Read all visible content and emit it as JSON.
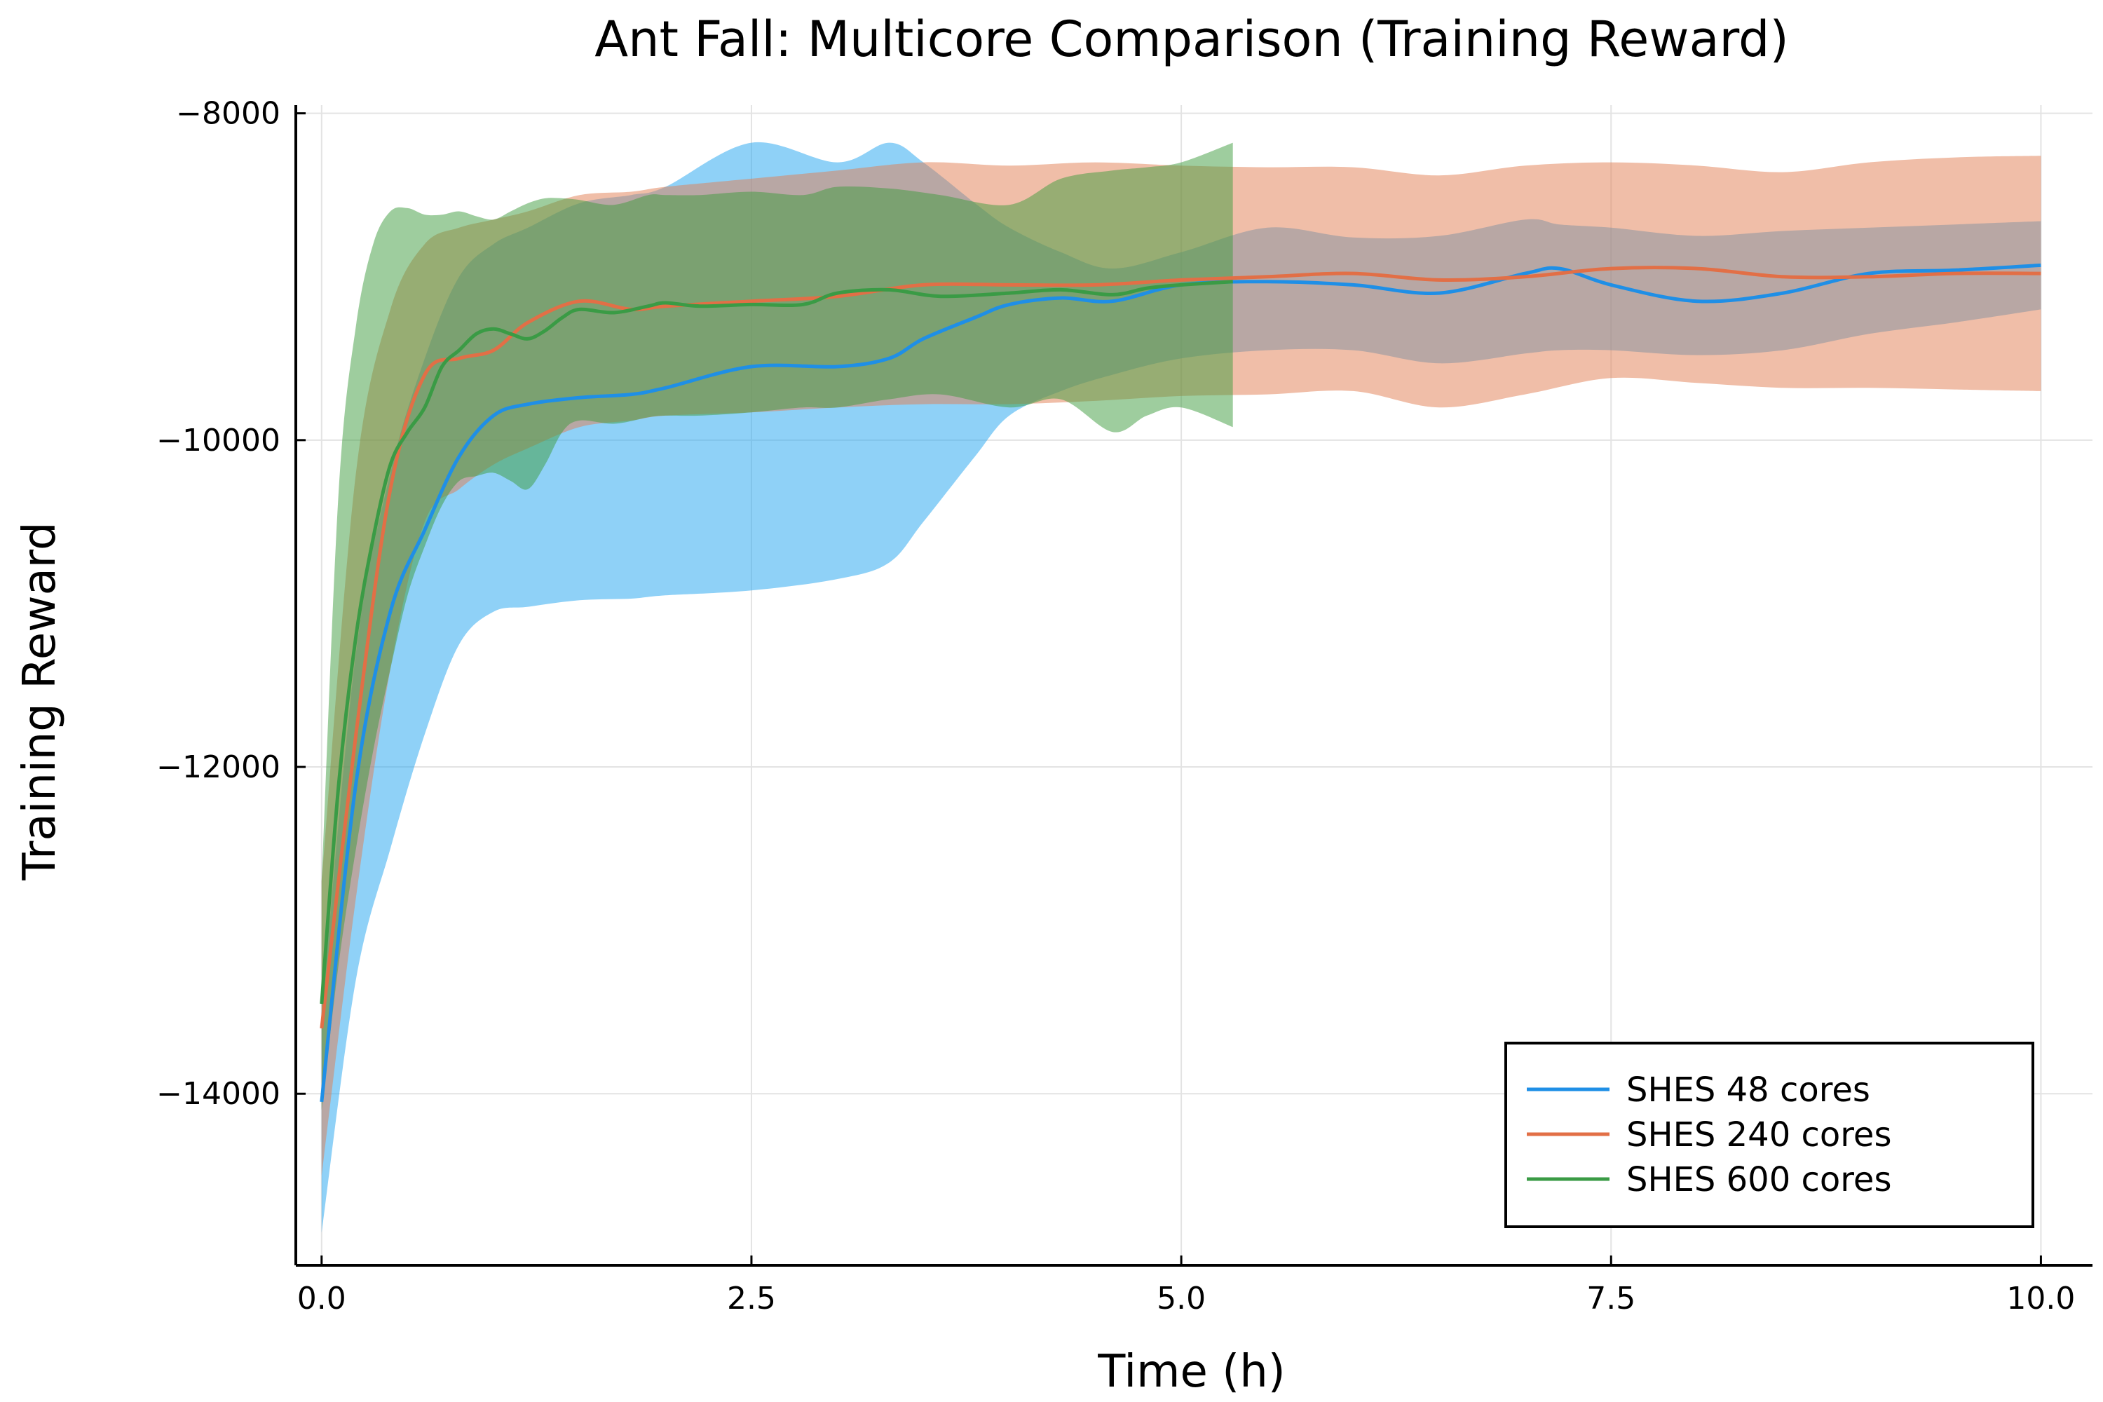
{
  "chart_data": {
    "type": "line",
    "title": "Ant Fall: Multicore Comparison (Training Reward)",
    "xlabel": "Time (h)",
    "ylabel": "Training Reward",
    "xlim": [
      -0.15,
      10.3
    ],
    "ylim": [
      -15050,
      -7950
    ],
    "xticks": [
      0,
      2.5,
      5,
      7.5,
      10
    ],
    "xtick_labels": [
      "0.0",
      "2.5",
      "5.0",
      "7.5",
      "10.0"
    ],
    "yticks": [
      -14000,
      -12000,
      -10000,
      -8000
    ],
    "ytick_labels": [
      "−14000",
      "−12000",
      "−10000",
      "−8000"
    ],
    "grid": true,
    "legend_position": "bottom-right",
    "band_opacity": 0.5,
    "series": [
      {
        "name": "SHES 48 cores",
        "color": "#1f8fe6",
        "band_color": "#1fa3f0",
        "x": [
          0,
          0.2,
          0.4,
          0.6,
          0.8,
          1.0,
          1.2,
          1.5,
          1.8,
          2.0,
          2.5,
          3.0,
          3.3,
          3.5,
          3.8,
          4.0,
          4.3,
          4.6,
          5.0,
          5.5,
          6.0,
          6.5,
          7.0,
          7.2,
          7.5,
          8.0,
          8.5,
          9.0,
          9.5,
          10.0
        ],
        "mean": [
          -14050,
          -12100,
          -11050,
          -10550,
          -10100,
          -9850,
          -9780,
          -9740,
          -9720,
          -9680,
          -9550,
          -9550,
          -9500,
          -9380,
          -9250,
          -9170,
          -9130,
          -9150,
          -9050,
          -9030,
          -9050,
          -9100,
          -8980,
          -8950,
          -9050,
          -9150,
          -9100,
          -8980,
          -8960,
          -8930
        ],
        "upper": [
          -13500,
          -11300,
          -10200,
          -9500,
          -9000,
          -8800,
          -8700,
          -8550,
          -8500,
          -8450,
          -8180,
          -8300,
          -8180,
          -8300,
          -8550,
          -8700,
          -8850,
          -8950,
          -8850,
          -8700,
          -8760,
          -8750,
          -8650,
          -8680,
          -8700,
          -8750,
          -8720,
          -8700,
          -8680,
          -8660
        ],
        "lower": [
          -14850,
          -13300,
          -12500,
          -11800,
          -11250,
          -11050,
          -11020,
          -10980,
          -10970,
          -10950,
          -10920,
          -10850,
          -10750,
          -10500,
          -10100,
          -9850,
          -9700,
          -9600,
          -9500,
          -9450,
          -9450,
          -9530,
          -9470,
          -9450,
          -9450,
          -9480,
          -9450,
          -9350,
          -9280,
          -9200
        ]
      },
      {
        "name": "SHES 240 cores",
        "color": "#e26f46",
        "band_color": "#e27d52",
        "x": [
          0,
          0.2,
          0.4,
          0.6,
          0.8,
          1.0,
          1.2,
          1.5,
          1.8,
          2.0,
          2.5,
          3.0,
          3.5,
          4.0,
          4.5,
          5.0,
          5.5,
          6.0,
          6.5,
          7.0,
          7.5,
          8.0,
          8.5,
          9.0,
          9.5,
          10.0
        ],
        "mean": [
          -13600,
          -11800,
          -10300,
          -9600,
          -9500,
          -9450,
          -9280,
          -9150,
          -9200,
          -9180,
          -9150,
          -9120,
          -9050,
          -9050,
          -9050,
          -9020,
          -9000,
          -8980,
          -9020,
          -9000,
          -8950,
          -8950,
          -9000,
          -9000,
          -8980,
          -8980
        ],
        "upper": [
          -12700,
          -10200,
          -9200,
          -8800,
          -8700,
          -8650,
          -8600,
          -8500,
          -8480,
          -8450,
          -8400,
          -8350,
          -8300,
          -8320,
          -8300,
          -8320,
          -8330,
          -8330,
          -8380,
          -8320,
          -8300,
          -8320,
          -8360,
          -8300,
          -8270,
          -8260
        ],
        "lower": [
          -14500,
          -12800,
          -11400,
          -10500,
          -10300,
          -10150,
          -10050,
          -9920,
          -9880,
          -9850,
          -9830,
          -9800,
          -9780,
          -9780,
          -9760,
          -9730,
          -9720,
          -9700,
          -9800,
          -9720,
          -9620,
          -9650,
          -9680,
          -9680,
          -9690,
          -9700
        ]
      },
      {
        "name": "SHES 600 cores",
        "color": "#3a9b45",
        "band_color": "#3d9b3d",
        "x": [
          0,
          0.1,
          0.2,
          0.3,
          0.4,
          0.5,
          0.6,
          0.7,
          0.8,
          0.9,
          1.0,
          1.1,
          1.2,
          1.3,
          1.4,
          1.5,
          1.7,
          1.9,
          2.0,
          2.2,
          2.5,
          2.8,
          3.0,
          3.3,
          3.6,
          4.0,
          4.3,
          4.6,
          4.8,
          5.0,
          5.3
        ],
        "mean": [
          -13450,
          -12100,
          -11200,
          -10600,
          -10150,
          -9950,
          -9800,
          -9550,
          -9450,
          -9350,
          -9320,
          -9350,
          -9380,
          -9330,
          -9250,
          -9200,
          -9220,
          -9180,
          -9160,
          -9180,
          -9170,
          -9170,
          -9100,
          -9080,
          -9120,
          -9100,
          -9080,
          -9110,
          -9070,
          -9050,
          -9030
        ],
        "upper": [
          -12700,
          -10300,
          -9300,
          -8800,
          -8600,
          -8580,
          -8620,
          -8620,
          -8600,
          -8630,
          -8650,
          -8600,
          -8550,
          -8520,
          -8520,
          -8530,
          -8560,
          -8500,
          -8500,
          -8500,
          -8480,
          -8500,
          -8450,
          -8460,
          -8500,
          -8560,
          -8400,
          -8350,
          -8330,
          -8300,
          -8180
        ],
        "lower": [
          -14100,
          -13200,
          -12500,
          -11900,
          -11400,
          -10950,
          -10650,
          -10400,
          -10250,
          -10220,
          -10200,
          -10250,
          -10300,
          -10150,
          -9950,
          -9880,
          -9900,
          -9860,
          -9850,
          -9850,
          -9830,
          -9800,
          -9800,
          -9750,
          -9720,
          -9800,
          -9750,
          -9950,
          -9850,
          -9800,
          -9920
        ]
      }
    ]
  }
}
